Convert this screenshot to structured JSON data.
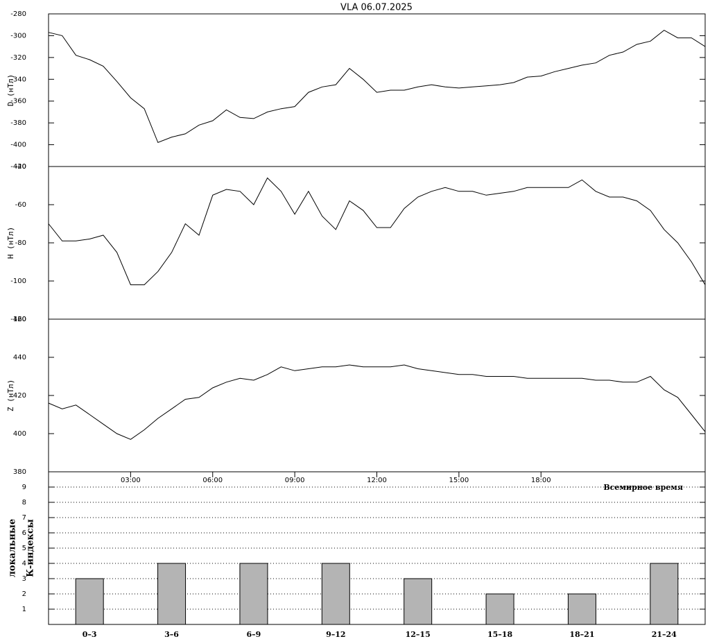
{
  "chart_data": [
    {
      "type": "line",
      "title": "VLA   06.07.2025",
      "ylabel": "D (нТл)",
      "color": "#000000",
      "x": [
        0,
        0.5,
        1,
        1.5,
        2,
        2.5,
        3,
        3.5,
        4,
        4.5,
        5,
        5.5,
        6,
        6.5,
        7,
        7.5,
        8,
        8.5,
        9,
        9.5,
        10,
        10.5,
        11,
        11.5,
        12,
        12.5,
        13,
        13.5,
        14,
        14.5,
        15,
        15.5,
        16,
        16.5,
        17,
        17.5,
        18,
        18.5,
        19,
        19.5,
        20,
        20.5,
        21,
        21.5,
        22,
        22.5,
        23,
        23.5,
        24
      ],
      "values": [
        -297,
        -300,
        -318,
        -322,
        -328,
        -342,
        -357,
        -367,
        -398,
        -393,
        -390,
        -382,
        -378,
        -368,
        -375,
        -376,
        -370,
        -367,
        -365,
        -352,
        -347,
        -345,
        -330,
        -340,
        -352,
        -350,
        -350,
        -347,
        -345,
        -347,
        -348,
        -347,
        -346,
        -345,
        -343,
        -338,
        -337,
        -333,
        -330,
        -327,
        -325,
        -318,
        -315,
        -308,
        -305,
        -295,
        -302,
        -302,
        -310
      ],
      "xlim": [
        0,
        24
      ],
      "ylim": [
        -420,
        -280
      ],
      "yticks": [
        -280,
        -300,
        -320,
        -340,
        -360,
        -380,
        -400,
        -420
      ]
    },
    {
      "type": "line",
      "ylabel": "H (нТл)",
      "color": "#000000",
      "x": [
        0,
        0.5,
        1,
        1.5,
        2,
        2.5,
        3,
        3.5,
        4,
        4.5,
        5,
        5.5,
        6,
        6.5,
        7,
        7.5,
        8,
        8.5,
        9,
        9.5,
        10,
        10.5,
        11,
        11.5,
        12,
        12.5,
        13,
        13.5,
        14,
        14.5,
        15,
        15.5,
        16,
        16.5,
        17,
        17.5,
        18,
        18.5,
        19,
        19.5,
        20,
        20.5,
        21,
        21.5,
        22,
        22.5,
        23,
        23.5,
        24
      ],
      "values": [
        -70,
        -79,
        -79,
        -78,
        -76,
        -85,
        -102,
        -102,
        -95,
        -85,
        -70,
        -76,
        -55,
        -52,
        -53,
        -60,
        -46,
        -53,
        -65,
        -53,
        -66,
        -73,
        -58,
        -63,
        -72,
        -72,
        -62,
        -56,
        -53,
        -51,
        -53,
        -53,
        -55,
        -54,
        -53,
        -51,
        -51,
        -51,
        -51,
        -47,
        -53,
        -56,
        -56,
        -58,
        -63,
        -73,
        -80,
        -90,
        -102
      ],
      "xlim": [
        0,
        24
      ],
      "ylim": [
        -120,
        -40
      ],
      "yticks": [
        -40,
        -60,
        -80,
        -100,
        -120
      ]
    },
    {
      "type": "line",
      "ylabel": "Z (нТл)",
      "xlabel": "Всемирное время",
      "color": "#000000",
      "x": [
        0,
        0.5,
        1,
        1.5,
        2,
        2.5,
        3,
        3.5,
        4,
        4.5,
        5,
        5.5,
        6,
        6.5,
        7,
        7.5,
        8,
        8.5,
        9,
        9.5,
        10,
        10.5,
        11,
        11.5,
        12,
        12.5,
        13,
        13.5,
        14,
        14.5,
        15,
        15.5,
        16,
        16.5,
        17,
        17.5,
        18,
        18.5,
        19,
        19.5,
        20,
        20.5,
        21,
        21.5,
        22,
        22.5,
        23,
        23.5,
        24
      ],
      "values": [
        416,
        413,
        415,
        410,
        405,
        400,
        397,
        402,
        408,
        413,
        418,
        419,
        424,
        427,
        429,
        428,
        431,
        435,
        433,
        434,
        435,
        435,
        436,
        435,
        435,
        435,
        436,
        434,
        433,
        432,
        431,
        431,
        430,
        430,
        430,
        429,
        429,
        429,
        429,
        429,
        428,
        428,
        427,
        427,
        430,
        423,
        419,
        410,
        401
      ],
      "xlim": [
        0,
        24
      ],
      "ylim": [
        380,
        460
      ],
      "yticks": [
        380,
        400,
        420,
        440,
        460
      ],
      "xticks": [
        {
          "value": 3,
          "label": "03:00"
        },
        {
          "value": 6,
          "label": "06:00"
        },
        {
          "value": 9,
          "label": "09:00"
        },
        {
          "value": 12,
          "label": "12:00"
        },
        {
          "value": 15,
          "label": "15:00"
        },
        {
          "value": 18,
          "label": "18:00"
        }
      ]
    },
    {
      "type": "bar",
      "ylabel_lines": [
        "локальные",
        "К-индексы"
      ],
      "color": "#b4b4b4",
      "categories": [
        "0–3",
        "3–6",
        "6–9",
        "9–12",
        "12–15",
        "15–18",
        "18–21",
        "21–24"
      ],
      "values": [
        3,
        4,
        4,
        4,
        3,
        2,
        2,
        4
      ],
      "ylim": [
        0,
        10
      ],
      "yticks": [
        1,
        2,
        3,
        4,
        5,
        6,
        7,
        8,
        9
      ],
      "grid": true
    }
  ]
}
